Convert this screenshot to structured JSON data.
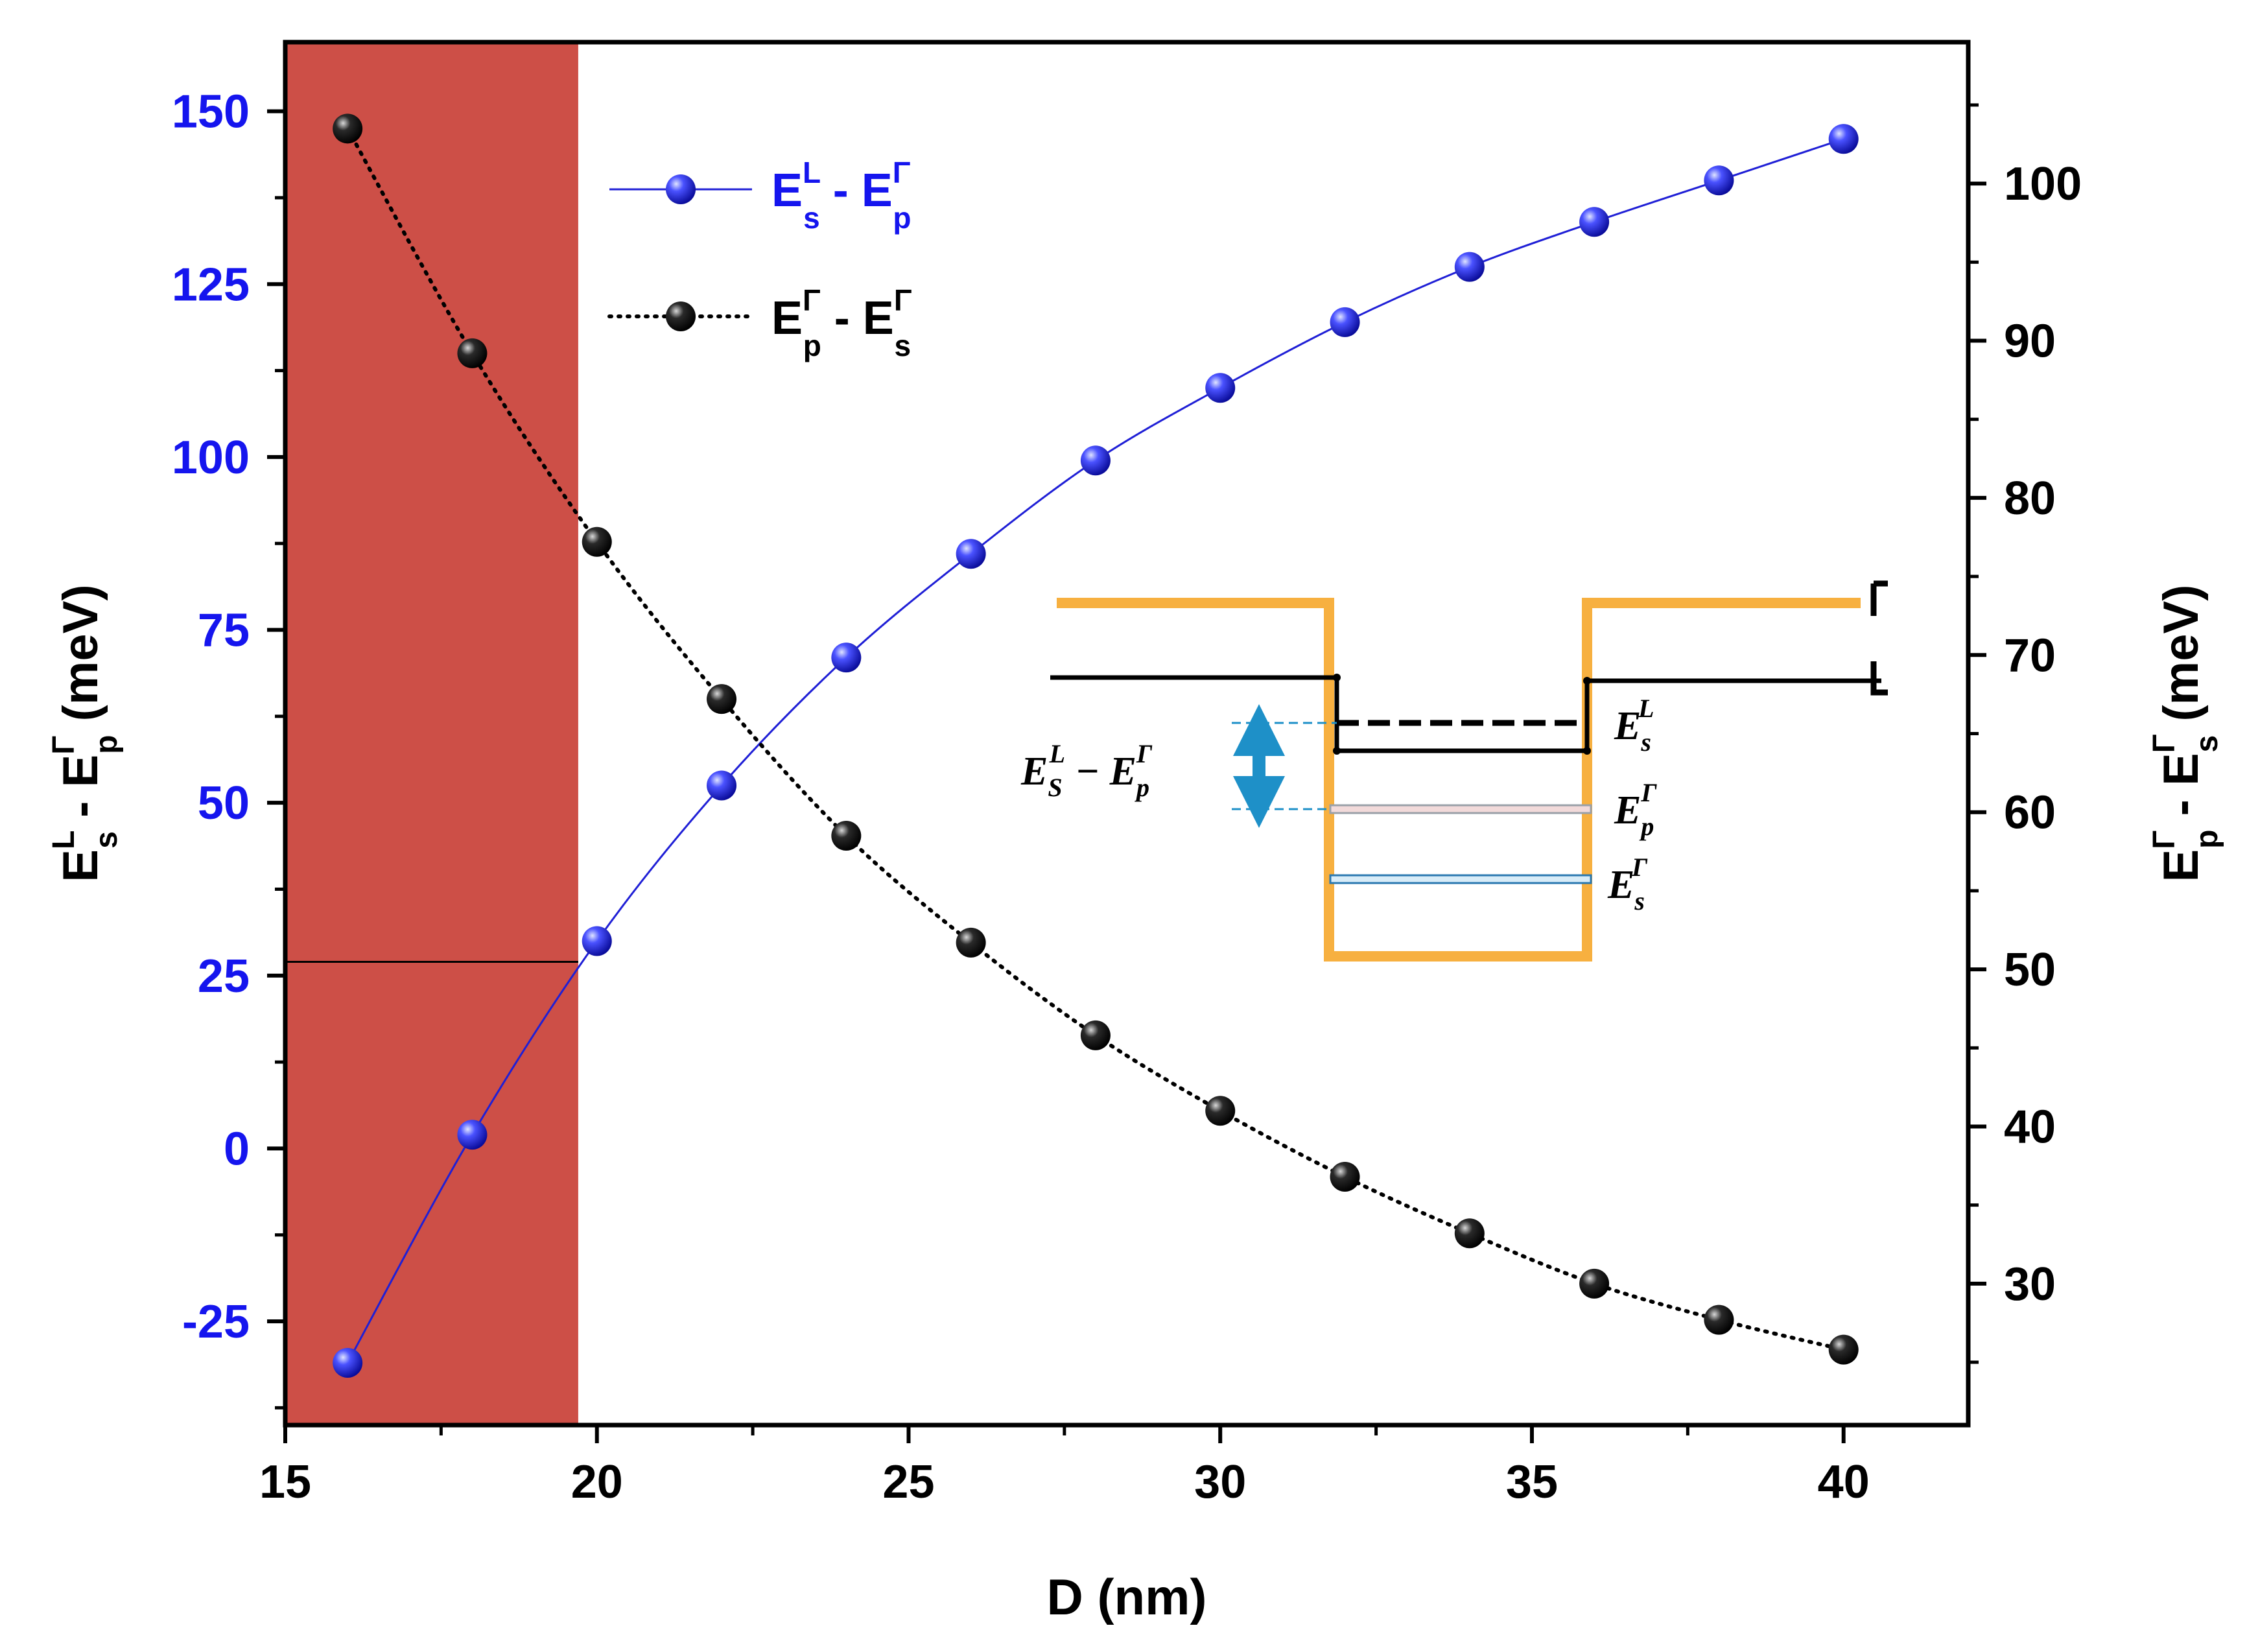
{
  "chart_data": {
    "type": "line",
    "xlabel": "D (nm)",
    "xlim": [
      15,
      42
    ],
    "x_ticks": [
      15,
      20,
      25,
      30,
      35,
      40
    ],
    "x": [
      16,
      18,
      20,
      22,
      24,
      26,
      28,
      30,
      32,
      34,
      36,
      38,
      40
    ],
    "left_axis": {
      "label_parts": [
        "E",
        "L",
        "s",
        " - E",
        "Γ",
        "p",
        " (meV)"
      ],
      "ylim": [
        -40,
        160
      ],
      "ticks": [
        -25,
        0,
        25,
        50,
        75,
        100,
        125,
        150
      ],
      "color": "#1515ee"
    },
    "right_axis": {
      "label_parts": [
        "E",
        "Γ",
        "p",
        " - E",
        "Γ",
        "s",
        " (meV)"
      ],
      "ylim": [
        21,
        109
      ],
      "ticks": [
        30,
        40,
        50,
        60,
        70,
        80,
        90,
        100
      ],
      "color": "#000000"
    },
    "series": [
      {
        "name": "Es L - Ep Γ",
        "legend_parts": [
          "E",
          "L",
          "s",
          " - E",
          "Γ",
          "p"
        ],
        "axis": "left",
        "style": "solid",
        "color": "#1f1fd6",
        "values": [
          -31,
          2,
          30,
          52.5,
          71,
          86,
          99.5,
          110,
          119.5,
          127.5,
          134,
          140,
          146
        ]
      },
      {
        "name": "Ep Γ - Es Γ",
        "legend_parts": [
          "E",
          "Γ",
          "p",
          " - E",
          "Γ",
          "s"
        ],
        "axis": "right",
        "style": "dotted",
        "color": "#000000",
        "values": [
          103.5,
          89.2,
          77.2,
          67.2,
          58.5,
          51.7,
          45.8,
          41.0,
          36.8,
          33.2,
          30.0,
          27.7,
          25.8
        ]
      }
    ],
    "shaded_region": {
      "x_from": 15,
      "x_to": 19.7,
      "color": "#cd4f47"
    },
    "reference_line": {
      "y_left": 27,
      "x_from": 15,
      "x_to": 19.7
    },
    "inset": {
      "labels": {
        "gamma_band": "Γ",
        "l_band": "L",
        "es_l": [
          "E",
          "s",
          "L"
        ],
        "ep_gamma": [
          "E",
          "p",
          "Γ"
        ],
        "es_gamma": [
          "E",
          "s",
          "Γ"
        ],
        "gap_expr": [
          "E",
          "S",
          "L",
          " − E",
          "p",
          "Γ"
        ]
      },
      "colors": {
        "gamma_band": "#f7b040",
        "l_band": "#000000",
        "arrow": "#1e90c8",
        "ep_level": "#e0a8a8",
        "es_level": "#5aa8d8"
      }
    }
  }
}
